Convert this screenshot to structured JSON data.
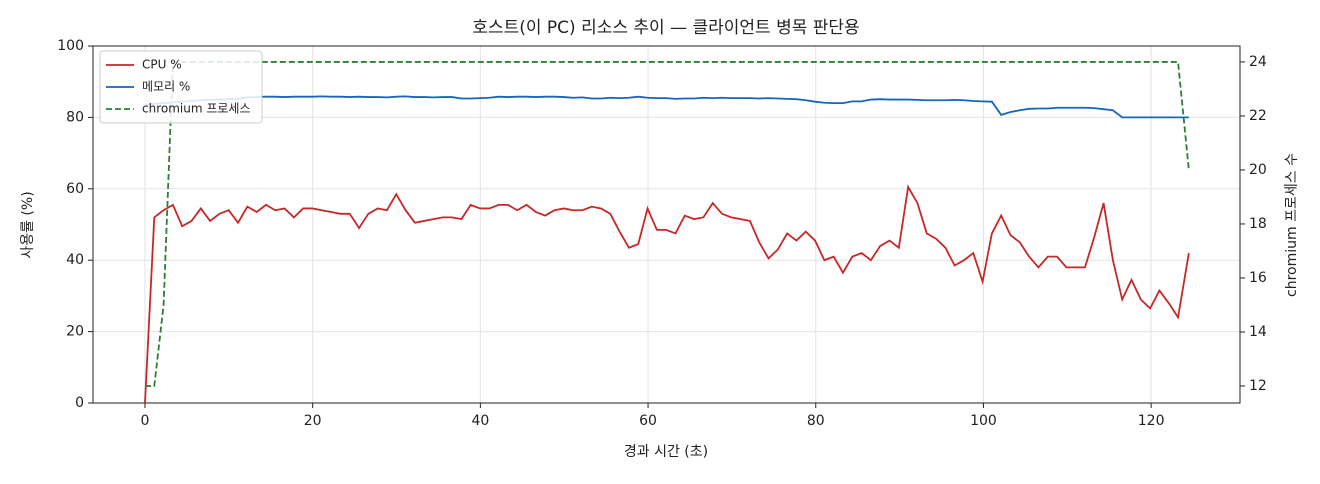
{
  "chart_data": {
    "type": "line",
    "title": "호스트(이 PC) 리소스 추이 — 클라이언트 병목 판단용",
    "xlabel": "경과 시간 (초)",
    "ylabel": "사용률 (%)",
    "y2label": "chromium 프로세스 수",
    "x": [
      0,
      1.11,
      2.22,
      3.33,
      4.44,
      5.55,
      6.66,
      7.77,
      8.88,
      9.99,
      11.1,
      12.21,
      13.32,
      14.43,
      15.54,
      16.65,
      17.76,
      18.87,
      19.98,
      21.09,
      22.2,
      23.31,
      24.42,
      25.53,
      26.64,
      27.75,
      28.86,
      29.97,
      31.08,
      32.19,
      33.3,
      34.41,
      35.52,
      36.63,
      37.74,
      38.85,
      39.96,
      41.07,
      42.18,
      43.29,
      44.4,
      45.51,
      46.62,
      47.73,
      48.84,
      49.95,
      51.06,
      52.17,
      53.28,
      54.39,
      55.5,
      56.61,
      57.72,
      58.83,
      59.94,
      61.05,
      62.16,
      63.27,
      64.38,
      65.49,
      66.6,
      67.71,
      68.82,
      69.93,
      71.04,
      72.15,
      73.26,
      74.37,
      75.48,
      76.59,
      77.7,
      78.81,
      79.92,
      81.03,
      82.14,
      83.25,
      84.36,
      85.47,
      86.58,
      87.69,
      88.8,
      89.91,
      91.02,
      92.13,
      93.24,
      94.35,
      95.46,
      96.57,
      97.68,
      98.79,
      99.9,
      101.01,
      102.12,
      103.23,
      104.34,
      105.45,
      106.56,
      107.67,
      108.78,
      109.89,
      111,
      112.11,
      113.22,
      114.33,
      115.44,
      116.55,
      117.66,
      118.77,
      119.88,
      120.99,
      122.1,
      123.21,
      124.5
    ],
    "series": [
      {
        "name": "CPU %",
        "color": "#c62828",
        "dash": false,
        "values": [
          0,
          52,
          54,
          55.5,
          49.5,
          51,
          54.5,
          51,
          53,
          54,
          50.5,
          55,
          53.5,
          55.5,
          54,
          54.5,
          52,
          54.5,
          54.5,
          54,
          53.5,
          53,
          53,
          49,
          53,
          54.5,
          54,
          58.5,
          54,
          50.5,
          51,
          51.5,
          52,
          52,
          51.5,
          55.5,
          54.5,
          54.5,
          55.5,
          55.5,
          54,
          55.5,
          53.5,
          52.5,
          54,
          54.5,
          54,
          54,
          55,
          54.5,
          53,
          48,
          43.5,
          44.5,
          54.5,
          48.5,
          48.5,
          47.5,
          52.5,
          51.5,
          52,
          56,
          53,
          52,
          51.5,
          51,
          45,
          40.5,
          43,
          47.5,
          45.5,
          48,
          45.5,
          40,
          41,
          36.5,
          41,
          42,
          40,
          44,
          45.5,
          43.5,
          60.5,
          56,
          47.5,
          46,
          43.5,
          38.5,
          40,
          42,
          34,
          47.5,
          52.5,
          47,
          45,
          41,
          38,
          41,
          41,
          38,
          38,
          38,
          46.5,
          56,
          40,
          29,
          34.5,
          29,
          26.5,
          31.5,
          28,
          24,
          42
        ]
      },
      {
        "name": "메모리 %",
        "color": "#1565c0",
        "dash": false,
        "values": [
          83.5,
          83.8,
          84,
          84.2,
          84.4,
          84.6,
          84.8,
          84.9,
          85,
          85.1,
          85.2,
          85.6,
          85.7,
          85.8,
          85.8,
          85.7,
          85.8,
          85.8,
          85.8,
          85.9,
          85.8,
          85.8,
          85.7,
          85.8,
          85.7,
          85.7,
          85.6,
          85.8,
          85.9,
          85.7,
          85.7,
          85.6,
          85.7,
          85.7,
          85.3,
          85.3,
          85.4,
          85.5,
          85.8,
          85.7,
          85.8,
          85.8,
          85.7,
          85.8,
          85.8,
          85.7,
          85.5,
          85.6,
          85.3,
          85.3,
          85.5,
          85.4,
          85.5,
          85.8,
          85.5,
          85.4,
          85.4,
          85.2,
          85.3,
          85.3,
          85.5,
          85.4,
          85.5,
          85.4,
          85.4,
          85.4,
          85.3,
          85.4,
          85.3,
          85.2,
          85.1,
          84.8,
          84.4,
          84.1,
          84,
          84,
          84.5,
          84.5,
          85,
          85.1,
          85,
          85,
          85,
          84.9,
          84.8,
          84.8,
          84.8,
          84.9,
          84.8,
          84.6,
          84.5,
          84.4,
          80.7,
          81.5,
          82,
          82.4,
          82.5,
          82.5,
          82.7,
          82.7,
          82.7,
          82.7,
          82.6,
          82.3,
          82,
          80,
          80,
          80,
          80,
          80,
          80,
          80,
          80
        ]
      },
      {
        "name": "chromium 프로세스",
        "color": "#2e7d32",
        "dash": true,
        "axis": "y2",
        "values": [
          12,
          12,
          15,
          24,
          24,
          24,
          24,
          24,
          24,
          24,
          24,
          24,
          24,
          24,
          24,
          24,
          24,
          24,
          24,
          24,
          24,
          24,
          24,
          24,
          24,
          24,
          24,
          24,
          24,
          24,
          24,
          24,
          24,
          24,
          24,
          24,
          24,
          24,
          24,
          24,
          24,
          24,
          24,
          24,
          24,
          24,
          24,
          24,
          24,
          24,
          24,
          24,
          24,
          24,
          24,
          24,
          24,
          24,
          24,
          24,
          24,
          24,
          24,
          24,
          24,
          24,
          24,
          24,
          24,
          24,
          24,
          24,
          24,
          24,
          24,
          24,
          24,
          24,
          24,
          24,
          24,
          24,
          24,
          24,
          24,
          24,
          24,
          24,
          24,
          24,
          24,
          24,
          24,
          24,
          24,
          24,
          24,
          24,
          24,
          24,
          24,
          24,
          24,
          24,
          24,
          24,
          24,
          24,
          24,
          24,
          24,
          24,
          20
        ]
      }
    ],
    "xlim": [
      -6.2,
      130.6
    ],
    "xticks": [
      0,
      20,
      40,
      60,
      80,
      100,
      120
    ],
    "ylim": [
      0,
      100
    ],
    "yticks": [
      0,
      20,
      40,
      60,
      80,
      100
    ],
    "y2lim": [
      11.37,
      24.59
    ],
    "y2ticks": [
      12,
      14,
      16,
      18,
      20,
      22,
      24
    ],
    "grid": true,
    "legend": "upper-left"
  }
}
